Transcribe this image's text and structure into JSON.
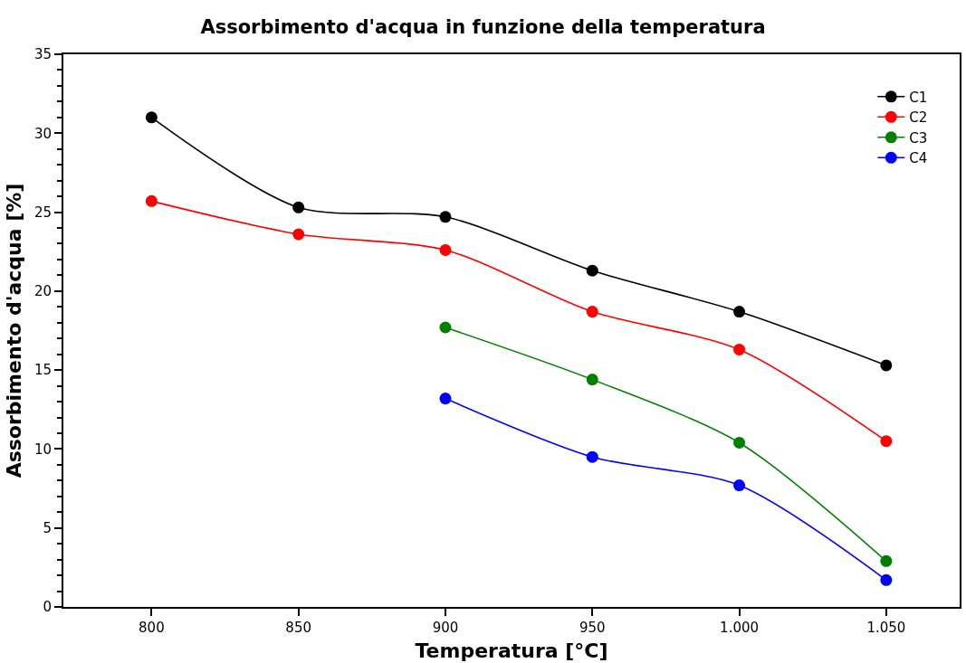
{
  "chart_data": {
    "type": "line",
    "title": "Assorbimento d'acqua in funzione della temperatura",
    "xlabel": "Temperatura [°C]",
    "ylabel": "Assorbimento d'acqua [%]",
    "x": [
      800,
      850,
      900,
      950,
      1000,
      1050
    ],
    "series": [
      {
        "name": "C1",
        "color": "#000000",
        "values": [
          31.0,
          25.3,
          24.7,
          21.3,
          18.7,
          15.3
        ]
      },
      {
        "name": "C2",
        "color": "#ff0000",
        "values": [
          25.7,
          23.6,
          22.6,
          18.7,
          16.3,
          10.5
        ]
      },
      {
        "name": "C3",
        "color": "#008000",
        "values": [
          null,
          null,
          17.7,
          14.4,
          10.4,
          2.9
        ]
      },
      {
        "name": "C4",
        "color": "#0000ff",
        "values": [
          null,
          null,
          13.2,
          9.5,
          7.7,
          1.7
        ]
      }
    ],
    "xlim": [
      770,
      1075
    ],
    "xticks": [
      800,
      850,
      900,
      950,
      {
        "value": 1000,
        "label": "1.000"
      },
      {
        "value": 1050,
        "label": "1.050"
      }
    ],
    "ylim": [
      0,
      35
    ],
    "yticks": [
      0,
      5,
      10,
      15,
      20,
      25,
      30,
      35
    ],
    "legend": "top right",
    "marker": "circle",
    "line_style": "solid"
  }
}
